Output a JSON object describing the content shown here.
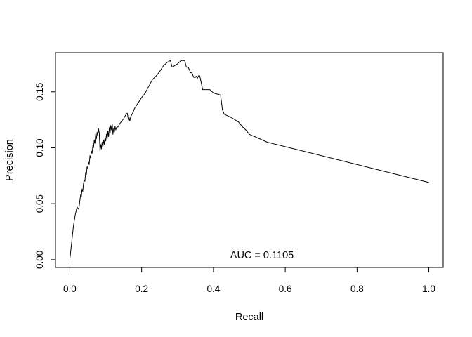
{
  "chart_data": {
    "type": "line",
    "title": "",
    "xlabel": "Recall",
    "ylabel": "Precision",
    "xlim": [
      -0.04,
      1.04
    ],
    "ylim": [
      -0.007,
      0.185
    ],
    "x_ticks": [
      0.0,
      0.2,
      0.4,
      0.6,
      0.8,
      1.0
    ],
    "x_tick_labels": [
      "0.0",
      "0.2",
      "0.4",
      "0.6",
      "0.8",
      "1.0"
    ],
    "y_ticks": [
      0.0,
      0.05,
      0.1,
      0.15
    ],
    "y_tick_labels": [
      "0.00",
      "0.05",
      "0.10",
      "0.15"
    ],
    "annotation": "AUC  = 0.1105",
    "grid": false,
    "series": [
      {
        "color": "#000000",
        "x": [
          0.0,
          0.005,
          0.01,
          0.015,
          0.02,
          0.025,
          0.028,
          0.03,
          0.032,
          0.034,
          0.036,
          0.038,
          0.04,
          0.042,
          0.044,
          0.046,
          0.048,
          0.05,
          0.052,
          0.054,
          0.056,
          0.058,
          0.06,
          0.062,
          0.064,
          0.066,
          0.068,
          0.07,
          0.072,
          0.074,
          0.076,
          0.078,
          0.08,
          0.082,
          0.084,
          0.086,
          0.088,
          0.09,
          0.092,
          0.094,
          0.096,
          0.098,
          0.1,
          0.102,
          0.104,
          0.106,
          0.108,
          0.11,
          0.112,
          0.114,
          0.116,
          0.118,
          0.12,
          0.122,
          0.124,
          0.126,
          0.128,
          0.13,
          0.135,
          0.14,
          0.145,
          0.15,
          0.155,
          0.16,
          0.163,
          0.165,
          0.167,
          0.17,
          0.175,
          0.18,
          0.19,
          0.2,
          0.21,
          0.22,
          0.23,
          0.24,
          0.25,
          0.26,
          0.27,
          0.28,
          0.285,
          0.29,
          0.3,
          0.31,
          0.315,
          0.32,
          0.323,
          0.325,
          0.33,
          0.335,
          0.337,
          0.34,
          0.345,
          0.35,
          0.352,
          0.355,
          0.36,
          0.362,
          0.37,
          0.38,
          0.385,
          0.39,
          0.4,
          0.41,
          0.412,
          0.42,
          0.425,
          0.43,
          0.45,
          0.47,
          0.48,
          0.49,
          0.5,
          0.55,
          1.0
        ],
        "y": [
          0.0,
          0.015,
          0.03,
          0.04,
          0.047,
          0.045,
          0.053,
          0.058,
          0.056,
          0.063,
          0.061,
          0.068,
          0.071,
          0.07,
          0.078,
          0.076,
          0.083,
          0.082,
          0.087,
          0.085,
          0.093,
          0.091,
          0.097,
          0.095,
          0.102,
          0.1,
          0.107,
          0.104,
          0.112,
          0.108,
          0.114,
          0.111,
          0.117,
          0.113,
          0.097,
          0.103,
          0.099,
          0.105,
          0.101,
          0.107,
          0.103,
          0.109,
          0.106,
          0.112,
          0.108,
          0.115,
          0.11,
          0.118,
          0.113,
          0.12,
          0.116,
          0.121,
          0.112,
          0.117,
          0.114,
          0.119,
          0.116,
          0.118,
          0.119,
          0.122,
          0.124,
          0.126,
          0.129,
          0.131,
          0.125,
          0.127,
          0.124,
          0.128,
          0.131,
          0.135,
          0.14,
          0.145,
          0.149,
          0.155,
          0.161,
          0.164,
          0.168,
          0.173,
          0.176,
          0.178,
          0.172,
          0.173,
          0.175,
          0.178,
          0.178,
          0.178,
          0.174,
          0.172,
          0.172,
          0.168,
          0.167,
          0.167,
          0.163,
          0.163,
          0.164,
          0.162,
          0.165,
          0.164,
          0.152,
          0.152,
          0.152,
          0.152,
          0.149,
          0.148,
          0.148,
          0.147,
          0.134,
          0.13,
          0.127,
          0.123,
          0.119,
          0.116,
          0.112,
          0.105,
          0.069
        ]
      }
    ]
  }
}
